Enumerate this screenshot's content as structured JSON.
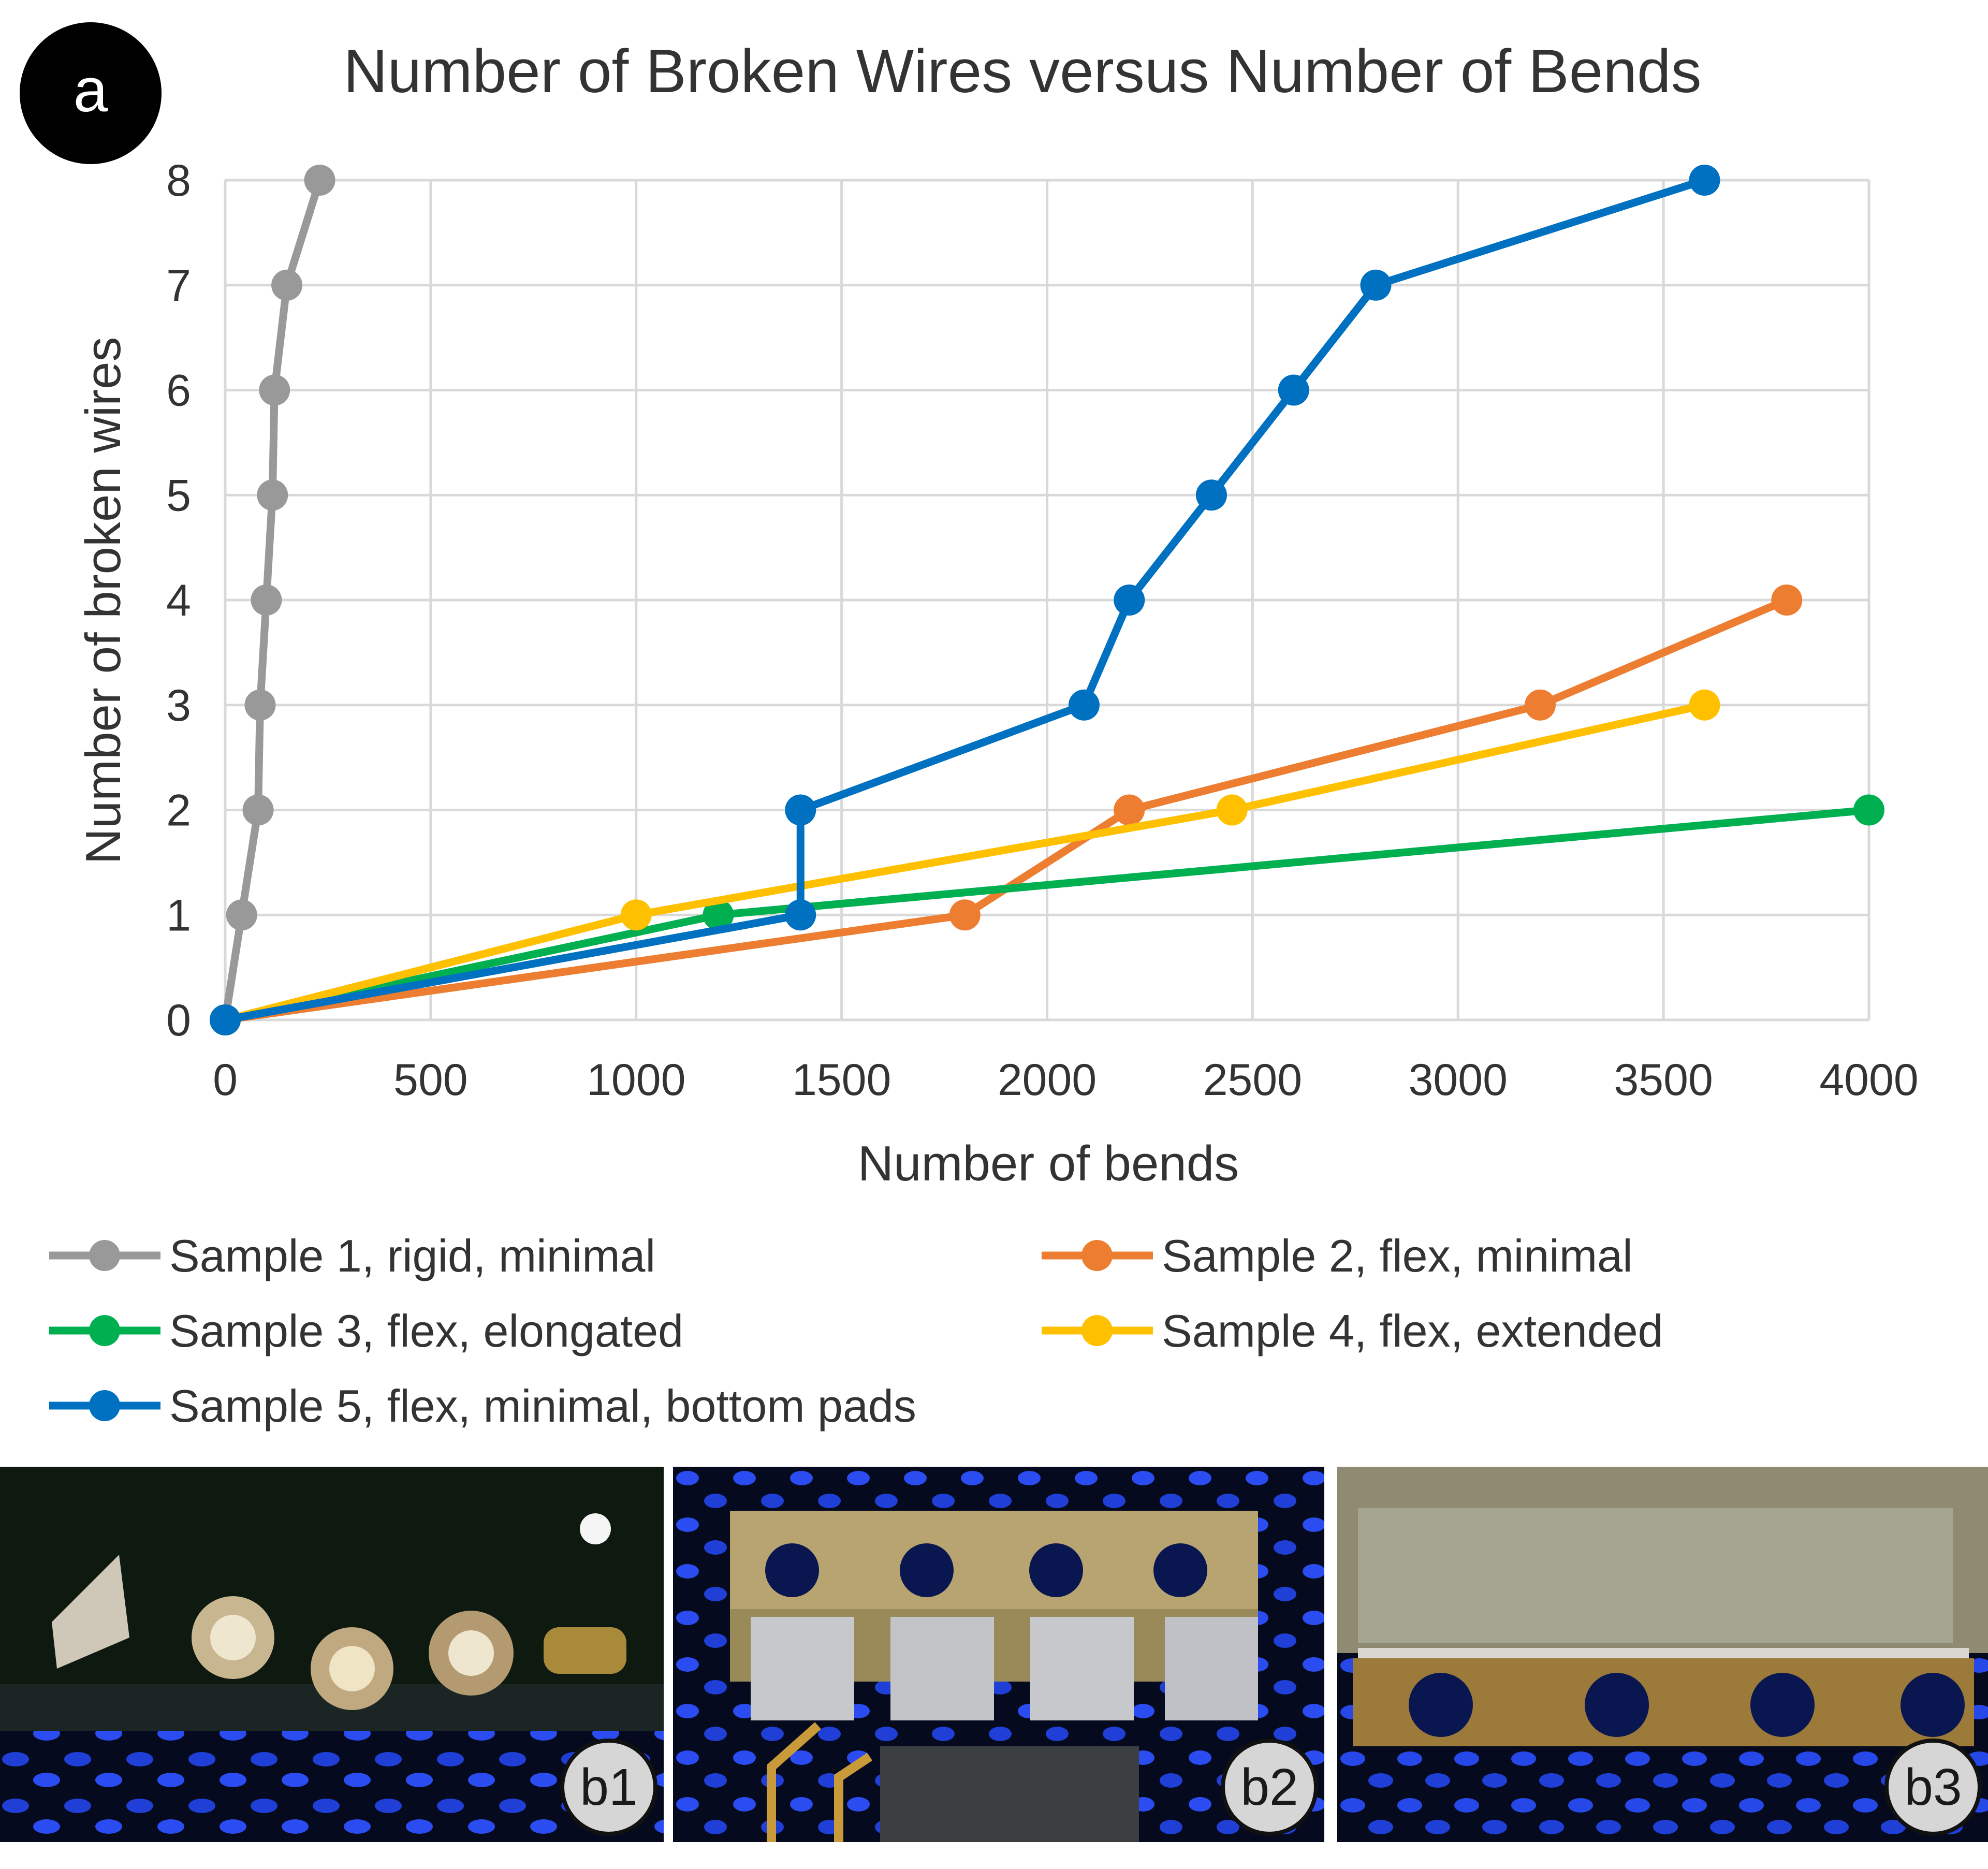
{
  "panel_label": "a",
  "chart_data": {
    "type": "line",
    "title": "Number of Broken Wires versus Number of Bends",
    "xlabel": "Number of bends",
    "ylabel": "Number of broken wires",
    "xlim": [
      0,
      4000
    ],
    "ylim": [
      0,
      8
    ],
    "x_ticks": [
      0,
      500,
      1000,
      1500,
      2000,
      2500,
      3000,
      3500,
      4000
    ],
    "y_ticks": [
      0,
      1,
      2,
      3,
      4,
      5,
      6,
      7,
      8
    ],
    "grid": true,
    "legend_position": "bottom",
    "series": [
      {
        "name": "Sample 1, rigid, minimal",
        "color": "#999999",
        "points": [
          [
            0,
            0
          ],
          [
            40,
            1
          ],
          [
            80,
            2
          ],
          [
            85,
            3
          ],
          [
            100,
            4
          ],
          [
            115,
            5
          ],
          [
            120,
            6
          ],
          [
            150,
            7
          ],
          [
            230,
            8
          ]
        ]
      },
      {
        "name": "Sample 2, flex, minimal",
        "color": "#ED7D31",
        "points": [
          [
            0,
            0
          ],
          [
            1800,
            1
          ],
          [
            2200,
            2
          ],
          [
            3200,
            3
          ],
          [
            3800,
            4
          ]
        ]
      },
      {
        "name": "Sample 3, flex, elongated",
        "color": "#00B050",
        "points": [
          [
            0,
            0
          ],
          [
            1200,
            1
          ],
          [
            4000,
            2
          ]
        ]
      },
      {
        "name": "Sample 4, flex, extended",
        "color": "#FFC000",
        "points": [
          [
            0,
            0
          ],
          [
            1000,
            1
          ],
          [
            2450,
            2
          ],
          [
            3600,
            3
          ]
        ]
      },
      {
        "name": "Sample 5, flex, minimal, bottom pads",
        "color": "#0070C0",
        "points": [
          [
            0,
            0
          ],
          [
            1400,
            1
          ],
          [
            1400,
            2
          ],
          [
            2090,
            3
          ],
          [
            2200,
            4
          ],
          [
            2400,
            5
          ],
          [
            2600,
            6
          ],
          [
            2800,
            7
          ],
          [
            3600,
            8
          ]
        ]
      }
    ]
  },
  "photos": [
    {
      "label": "b1"
    },
    {
      "label": "b2"
    },
    {
      "label": "b3"
    }
  ]
}
